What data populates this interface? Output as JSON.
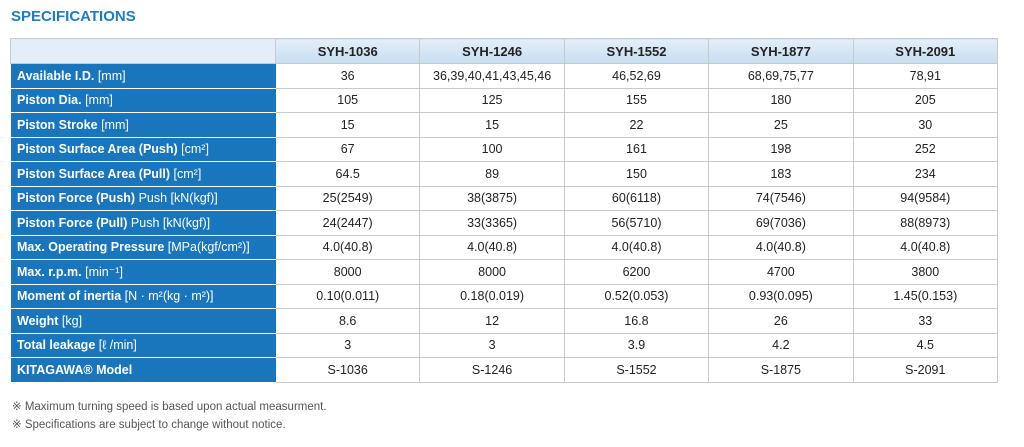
{
  "title": "SPECIFICATIONS",
  "table": {
    "headers": [
      "SYH-1036",
      "SYH-1246",
      "SYH-1552",
      "SYH-1877",
      "SYH-2091"
    ],
    "rows": [
      {
        "name": "Available I.D.",
        "unit": "[mm]",
        "values": [
          "36",
          "36,39,40,41,43,45,46",
          "46,52,69",
          "68,69,75,77",
          "78,91"
        ]
      },
      {
        "name": "Piston Dia.",
        "unit": "[mm]",
        "values": [
          "105",
          "125",
          "155",
          "180",
          "205"
        ]
      },
      {
        "name": "Piston Stroke",
        "unit": "[mm]",
        "values": [
          "15",
          "15",
          "22",
          "25",
          "30"
        ]
      },
      {
        "name": "Piston Surface Area (Push)",
        "unit": "[cm²]",
        "values": [
          "67",
          "100",
          "161",
          "198",
          "252"
        ]
      },
      {
        "name": "Piston Surface Area (Pull)",
        "unit": "[cm²]",
        "values": [
          "64.5",
          "89",
          "150",
          "183",
          "234"
        ]
      },
      {
        "name": "Piston Force (Push)",
        "unit": "Push [kN(kgf)]",
        "values": [
          "25(2549)",
          "38(3875)",
          "60(6118)",
          "74(7546)",
          "94(9584)"
        ]
      },
      {
        "name": "Piston Force (Pull)",
        "unit": "Push [kN(kgf)]",
        "values": [
          "24(2447)",
          "33(3365)",
          "56(5710)",
          "69(7036)",
          "88(8973)"
        ]
      },
      {
        "name": "Max. Operating Pressure",
        "unit": "[MPa(kgf/cm²)]",
        "values": [
          "4.0(40.8)",
          "4.0(40.8)",
          "4.0(40.8)",
          "4.0(40.8)",
          "4.0(40.8)"
        ]
      },
      {
        "name": "Max. r.p.m.",
        "unit": "[min⁻¹]",
        "values": [
          "8000",
          "8000",
          "6200",
          "4700",
          "3800"
        ]
      },
      {
        "name": "Moment of inertia",
        "unit": "[N · m²(kg · m²)]",
        "values": [
          "0.10(0.011)",
          "0.18(0.019)",
          "0.52(0.053)",
          "0.93(0.095)",
          "1.45(0.153)"
        ]
      },
      {
        "name": "Weight",
        "unit": "[kg]",
        "values": [
          "8.6",
          "12",
          "16.8",
          "26",
          "33"
        ]
      },
      {
        "name": "Total leakage",
        "unit": "[ℓ /min]",
        "values": [
          "3",
          "3",
          "3.9",
          "4.2",
          "4.5"
        ]
      },
      {
        "name": "KITAGAWA® Model",
        "unit": "",
        "values": [
          "S-1036",
          "S-1246",
          "S-1552",
          "S-1875",
          "S-2091"
        ]
      }
    ]
  },
  "notes": [
    "※ Maximum turning speed is based upon actual measurment.",
    "※ Specifications are subject to change without notice."
  ]
}
